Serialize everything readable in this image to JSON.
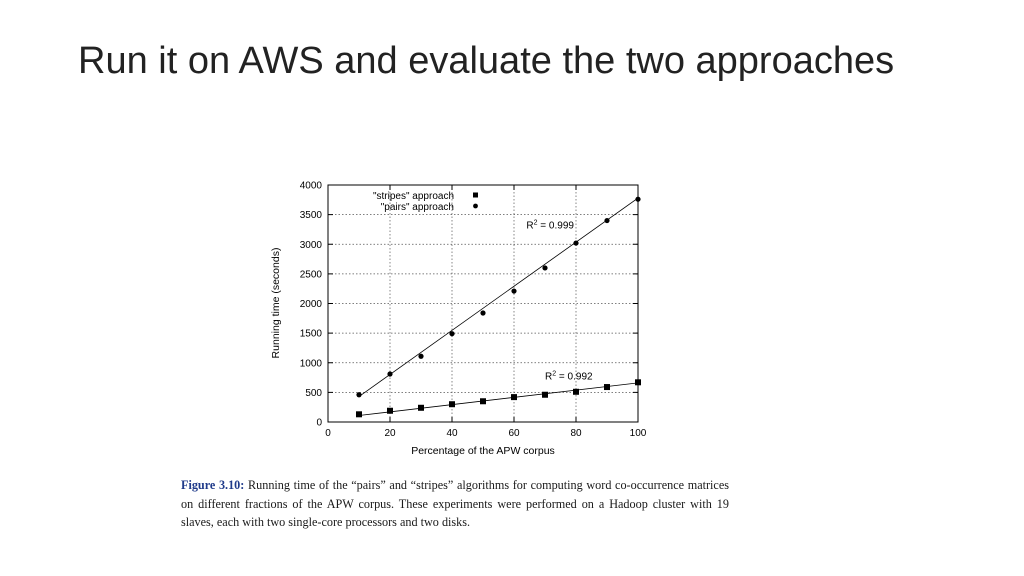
{
  "slide": {
    "title": "Run it on AWS and evaluate the two approaches"
  },
  "caption": {
    "figure_label": "Figure 3.10:",
    "text": "Running time of the “pairs” and “stripes” algorithms for computing word co-occurrence matrices on different fractions of the APW corpus. These experiments were performed on a Hadoop cluster with 19 slaves, each with two single-core processors and two disks."
  },
  "chart_data": {
    "type": "scatter",
    "title": "",
    "xlabel": "Percentage of the APW corpus",
    "ylabel": "Running time (seconds)",
    "xlim": [
      0,
      100
    ],
    "ylim": [
      0,
      4000
    ],
    "xticks": [
      0,
      20,
      40,
      60,
      80,
      100
    ],
    "yticks": [
      0,
      500,
      1000,
      1500,
      2000,
      2500,
      3000,
      3500,
      4000
    ],
    "grid": true,
    "legend_position": "top-left",
    "series": [
      {
        "name": "\"stripes\" approach",
        "marker": "square",
        "x": [
          10,
          20,
          30,
          40,
          50,
          60,
          70,
          80,
          90,
          100
        ],
        "y": [
          130,
          190,
          240,
          300,
          350,
          420,
          460,
          510,
          590,
          670
        ],
        "fit_line": [
          [
            10,
            110
          ],
          [
            100,
            660
          ]
        ],
        "r2_label": "R² = 0.992",
        "r2_anchor": [
          70,
          720
        ]
      },
      {
        "name": "\"pairs\" approach",
        "marker": "circle",
        "x": [
          10,
          20,
          30,
          40,
          50,
          60,
          70,
          80,
          90,
          100
        ],
        "y": [
          460,
          810,
          1110,
          1490,
          1840,
          2210,
          2600,
          3020,
          3400,
          3760
        ],
        "fit_line": [
          [
            10,
            430
          ],
          [
            100,
            3780
          ]
        ],
        "r2_label": "R² = 0.999",
        "r2_anchor": [
          64,
          3270
        ]
      }
    ]
  }
}
